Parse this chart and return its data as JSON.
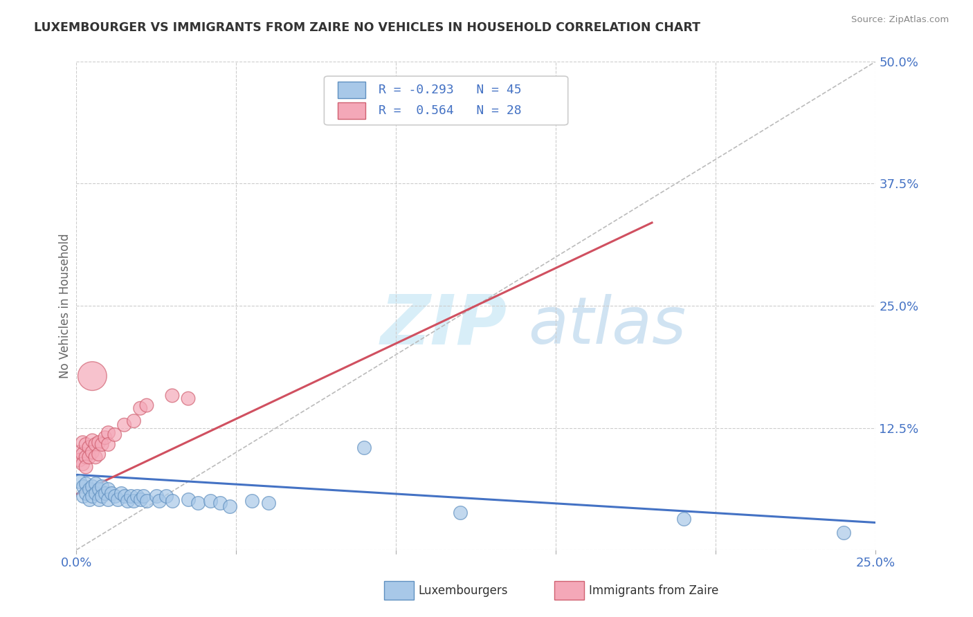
{
  "title": "LUXEMBOURGER VS IMMIGRANTS FROM ZAIRE NO VEHICLES IN HOUSEHOLD CORRELATION CHART",
  "source": "Source: ZipAtlas.com",
  "ylabel": "No Vehicles in Household",
  "xlim": [
    0.0,
    0.25
  ],
  "ylim": [
    0.0,
    0.5
  ],
  "xticks": [
    0.0,
    0.05,
    0.1,
    0.15,
    0.2,
    0.25
  ],
  "yticks": [
    0.0,
    0.125,
    0.25,
    0.375,
    0.5
  ],
  "xtick_labels": [
    "0.0%",
    "",
    "",
    "",
    "",
    "25.0%"
  ],
  "ytick_labels": [
    "",
    "12.5%",
    "25.0%",
    "37.5%",
    "50.0%"
  ],
  "series1_color": "#A8C8E8",
  "series2_color": "#F4A8B8",
  "series1_edge": "#6090C0",
  "series2_edge": "#D06070",
  "series1_name": "Luxembourgers",
  "series2_name": "Immigrants from Zaire",
  "blue_line_x": [
    0.0,
    0.25
  ],
  "blue_line_y": [
    0.077,
    0.028
  ],
  "pink_line_x": [
    0.0,
    0.18
  ],
  "pink_line_y": [
    0.057,
    0.335
  ],
  "diag_line_x": [
    0.0,
    0.25
  ],
  "diag_line_y": [
    0.0,
    0.5
  ],
  "blue_scatter": [
    [
      0.001,
      0.07
    ],
    [
      0.002,
      0.065
    ],
    [
      0.002,
      0.055
    ],
    [
      0.003,
      0.068
    ],
    [
      0.003,
      0.058
    ],
    [
      0.004,
      0.062
    ],
    [
      0.004,
      0.052
    ],
    [
      0.005,
      0.065
    ],
    [
      0.005,
      0.055
    ],
    [
      0.006,
      0.068
    ],
    [
      0.006,
      0.058
    ],
    [
      0.007,
      0.062
    ],
    [
      0.007,
      0.052
    ],
    [
      0.008,
      0.065
    ],
    [
      0.008,
      0.055
    ],
    [
      0.009,
      0.058
    ],
    [
      0.01,
      0.062
    ],
    [
      0.01,
      0.052
    ],
    [
      0.011,
      0.058
    ],
    [
      0.012,
      0.055
    ],
    [
      0.013,
      0.052
    ],
    [
      0.014,
      0.058
    ],
    [
      0.015,
      0.055
    ],
    [
      0.016,
      0.05
    ],
    [
      0.017,
      0.055
    ],
    [
      0.018,
      0.05
    ],
    [
      0.019,
      0.055
    ],
    [
      0.02,
      0.052
    ],
    [
      0.021,
      0.055
    ],
    [
      0.022,
      0.05
    ],
    [
      0.025,
      0.055
    ],
    [
      0.026,
      0.05
    ],
    [
      0.028,
      0.055
    ],
    [
      0.03,
      0.05
    ],
    [
      0.035,
      0.052
    ],
    [
      0.038,
      0.048
    ],
    [
      0.042,
      0.05
    ],
    [
      0.045,
      0.048
    ],
    [
      0.048,
      0.045
    ],
    [
      0.055,
      0.05
    ],
    [
      0.06,
      0.048
    ],
    [
      0.09,
      0.105
    ],
    [
      0.12,
      0.038
    ],
    [
      0.19,
      0.032
    ],
    [
      0.24,
      0.018
    ]
  ],
  "pink_scatter": [
    [
      0.001,
      0.1
    ],
    [
      0.001,
      0.092
    ],
    [
      0.002,
      0.11
    ],
    [
      0.002,
      0.098
    ],
    [
      0.002,
      0.088
    ],
    [
      0.003,
      0.108
    ],
    [
      0.003,
      0.095
    ],
    [
      0.003,
      0.085
    ],
    [
      0.004,
      0.105
    ],
    [
      0.004,
      0.095
    ],
    [
      0.005,
      0.112
    ],
    [
      0.005,
      0.1
    ],
    [
      0.006,
      0.108
    ],
    [
      0.006,
      0.095
    ],
    [
      0.007,
      0.11
    ],
    [
      0.007,
      0.098
    ],
    [
      0.008,
      0.108
    ],
    [
      0.009,
      0.115
    ],
    [
      0.01,
      0.12
    ],
    [
      0.01,
      0.108
    ],
    [
      0.012,
      0.118
    ],
    [
      0.015,
      0.128
    ],
    [
      0.018,
      0.132
    ],
    [
      0.02,
      0.145
    ],
    [
      0.022,
      0.148
    ],
    [
      0.03,
      0.158
    ],
    [
      0.035,
      0.155
    ],
    [
      0.005,
      0.178
    ]
  ],
  "pink_large_idx": 27,
  "bg_color": "#FFFFFF",
  "grid_color": "#CCCCCC",
  "title_color": "#333333",
  "axis_label_color": "#666666",
  "tick_color": "#4472C4",
  "watermark_color": "#D8EEF8",
  "legend_color": "#4472C4"
}
